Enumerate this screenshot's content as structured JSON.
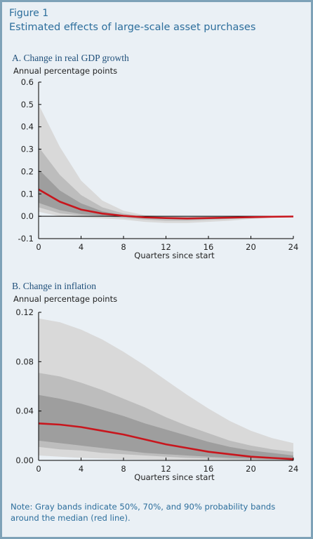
{
  "figure": {
    "label": "Figure 1",
    "title": "Estimated effects of large-scale asset purchases",
    "note": "Note: Gray bands indicate 50%, 70%, and 90% probability bands around the median (red line)."
  },
  "colors": {
    "panel_bg": "#eaf0f5",
    "band_90": "#d9d9d9",
    "band_70": "#bdbdbd",
    "band_50": "#9e9e9e",
    "median": "#c8161d",
    "title": "#2c6e9c"
  },
  "chart_data": [
    {
      "type": "area",
      "panel_title": "A. Change in real GDP growth",
      "ylabel": "Annual percentage points",
      "xlabel": "Quarters since start",
      "xlim": [
        0,
        24
      ],
      "ylim": [
        -0.1,
        0.6
      ],
      "xticks": [
        0,
        4,
        8,
        12,
        16,
        20,
        24
      ],
      "yticks": [
        -0.1,
        0.0,
        0.1,
        0.2,
        0.3,
        0.4,
        0.5,
        0.6
      ],
      "ytick_labels": [
        "-0.1",
        "0.0",
        "0.1",
        "0.2",
        "0.3",
        "0.4",
        "0.5",
        "0.6"
      ],
      "x": [
        0,
        2,
        4,
        6,
        8,
        10,
        12,
        14,
        16,
        18,
        20,
        22,
        24
      ],
      "series": [
        {
          "name": "90% band",
          "upper": [
            0.5,
            0.31,
            0.16,
            0.07,
            0.025,
            0.005,
            0.0,
            0.0,
            0.0,
            0.0,
            0.0,
            0.0,
            0.0
          ],
          "lower": [
            0.02,
            0.0,
            -0.005,
            -0.01,
            -0.015,
            -0.025,
            -0.03,
            -0.03,
            -0.025,
            -0.02,
            -0.012,
            -0.006,
            -0.003
          ]
        },
        {
          "name": "70% band",
          "upper": [
            0.31,
            0.185,
            0.095,
            0.04,
            0.012,
            0.0,
            -0.002,
            -0.002,
            -0.002,
            -0.002,
            -0.001,
            0.0,
            0.0
          ],
          "lower": [
            0.04,
            0.013,
            0.004,
            0.0,
            -0.007,
            -0.015,
            -0.02,
            -0.02,
            -0.016,
            -0.012,
            -0.008,
            -0.004,
            -0.002
          ]
        },
        {
          "name": "50% band",
          "upper": [
            0.21,
            0.115,
            0.058,
            0.022,
            0.005,
            -0.003,
            -0.005,
            -0.006,
            -0.005,
            -0.004,
            -0.003,
            -0.001,
            0.0
          ],
          "lower": [
            0.06,
            0.027,
            0.01,
            0.002,
            -0.002,
            -0.008,
            -0.012,
            -0.013,
            -0.011,
            -0.008,
            -0.005,
            -0.003,
            -0.001
          ]
        },
        {
          "name": "median",
          "values": [
            0.12,
            0.065,
            0.03,
            0.012,
            0.002,
            -0.005,
            -0.008,
            -0.01,
            -0.008,
            -0.006,
            -0.004,
            -0.002,
            -0.001
          ]
        }
      ]
    },
    {
      "type": "area",
      "panel_title": "B. Change in inflation",
      "ylabel": "Annual percentage points",
      "xlabel": "Quarters since start",
      "xlim": [
        0,
        24
      ],
      "ylim": [
        0,
        0.12
      ],
      "xticks": [
        0,
        4,
        8,
        12,
        16,
        20,
        24
      ],
      "yticks": [
        0,
        0.04,
        0.08,
        0.12
      ],
      "ytick_labels": [
        "0.00",
        "0.04",
        "0.08",
        "0.12"
      ],
      "x": [
        0,
        2,
        4,
        6,
        8,
        10,
        12,
        14,
        16,
        18,
        20,
        22,
        24
      ],
      "series": [
        {
          "name": "90% band",
          "upper": [
            0.115,
            0.112,
            0.106,
            0.098,
            0.088,
            0.077,
            0.065,
            0.053,
            0.042,
            0.032,
            0.024,
            0.018,
            0.014
          ],
          "lower": [
            0.004,
            0.003,
            0.002,
            0.0015,
            0.001,
            0.0008,
            0.0005,
            0.0003,
            0.0002,
            0.0001,
            0.0,
            0.0,
            0.0
          ]
        },
        {
          "name": "70% band",
          "upper": [
            0.071,
            0.068,
            0.063,
            0.057,
            0.05,
            0.043,
            0.035,
            0.028,
            0.022,
            0.016,
            0.012,
            0.009,
            0.007
          ],
          "lower": [
            0.011,
            0.009,
            0.008,
            0.006,
            0.005,
            0.004,
            0.003,
            0.002,
            0.0015,
            0.001,
            0.0008,
            0.0005,
            0.0003
          ]
        },
        {
          "name": "50% band",
          "upper": [
            0.053,
            0.05,
            0.046,
            0.041,
            0.036,
            0.03,
            0.025,
            0.02,
            0.015,
            0.011,
            0.008,
            0.006,
            0.004
          ],
          "lower": [
            0.016,
            0.014,
            0.012,
            0.01,
            0.008,
            0.006,
            0.005,
            0.004,
            0.003,
            0.002,
            0.0015,
            0.001,
            0.0005
          ]
        },
        {
          "name": "median",
          "values": [
            0.03,
            0.029,
            0.027,
            0.024,
            0.021,
            0.017,
            0.013,
            0.01,
            0.007,
            0.005,
            0.003,
            0.002,
            0.001
          ]
        }
      ]
    }
  ]
}
